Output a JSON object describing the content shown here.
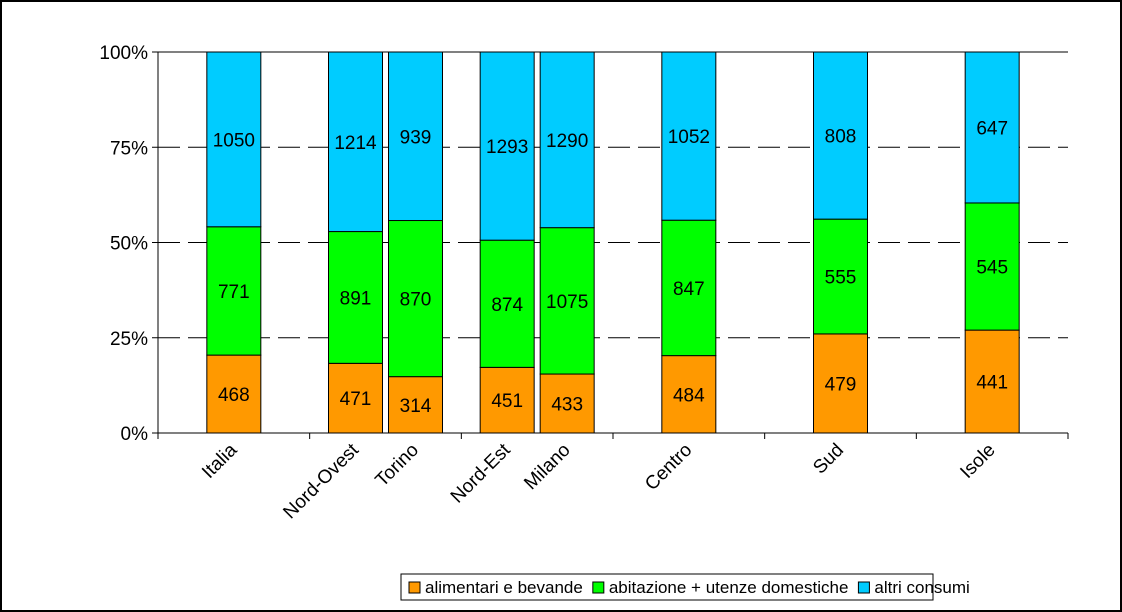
{
  "chart_data": {
    "type": "bar",
    "stacked": "percent",
    "groups": [
      [
        "Italia"
      ],
      [
        "Nord-Ovest",
        "Torino"
      ],
      [
        "Nord-Est",
        "Milano"
      ],
      [
        "Centro"
      ],
      [
        "Sud"
      ],
      [
        "Isole"
      ]
    ],
    "categories": [
      "Italia",
      "Nord-Ovest",
      "Torino",
      "Nord-Est",
      "Milano",
      "Centro",
      "Sud",
      "Isole"
    ],
    "series": [
      {
        "name": "alimentari e bevande",
        "color": "#FF9900",
        "values": [
          468,
          471,
          314,
          451,
          433,
          484,
          479,
          441
        ]
      },
      {
        "name": "abitazione + utenze domestiche",
        "color": "#00FF00",
        "values": [
          771,
          891,
          870,
          874,
          1075,
          847,
          555,
          545
        ]
      },
      {
        "name": "altri consumi",
        "color": "#00CCFF",
        "values": [
          1050,
          1214,
          939,
          1293,
          1290,
          1052,
          808,
          647
        ]
      }
    ],
    "yticks": [
      "0%",
      "25%",
      "50%",
      "75%",
      "100%"
    ],
    "ylim": [
      0,
      100
    ],
    "grid": "dashed horizontal",
    "legend": "bottom",
    "title": "",
    "xlabel": "",
    "ylabel": ""
  }
}
